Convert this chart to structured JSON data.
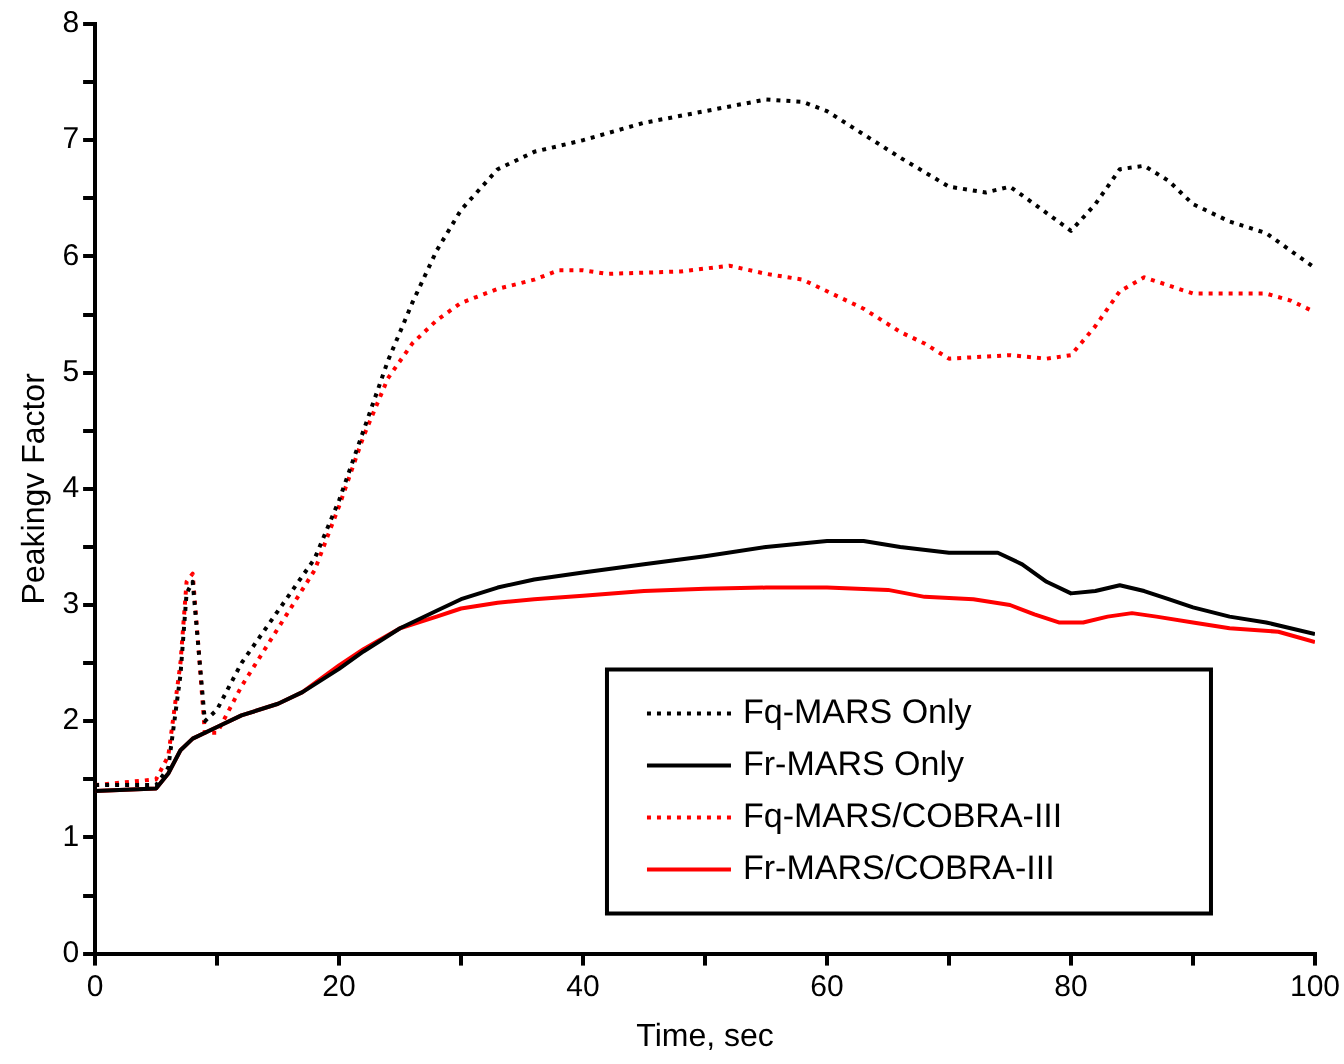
{
  "chart_data": {
    "type": "line",
    "xlabel": "Time, sec",
    "ylabel": "Peakingv Factor",
    "xlim": [
      0,
      100
    ],
    "ylim": [
      0,
      8
    ],
    "xticks": [
      0,
      {
        "value": 10,
        "label": null
      },
      20,
      {
        "value": 30,
        "label": null
      },
      40,
      {
        "value": 50,
        "label": null
      },
      60,
      {
        "value": 70,
        "label": null
      },
      80,
      {
        "value": 90,
        "label": null
      },
      100
    ],
    "yticks": [
      0,
      {
        "value": 0.5,
        "label": null
      },
      1,
      {
        "value": 1.5,
        "label": null
      },
      2,
      {
        "value": 2.5,
        "label": null
      },
      3,
      {
        "value": 3.5,
        "label": null
      },
      4,
      {
        "value": 4.5,
        "label": null
      },
      5,
      {
        "value": 5.5,
        "label": null
      },
      6,
      {
        "value": 6.5,
        "label": null
      },
      7,
      {
        "value": 7.5,
        "label": null
      },
      8
    ],
    "grid": false,
    "legend": "bottom right",
    "marker": "none",
    "series": [
      {
        "name": "Fq-MARS Only",
        "color": "#000000",
        "line_style": "dotted",
        "x": [
          0,
          5,
          6,
          7,
          7.5,
          8,
          8.5,
          9,
          10,
          12,
          15,
          18,
          20,
          22,
          24,
          26,
          28,
          30,
          33,
          36,
          40,
          45,
          50,
          55,
          58,
          60,
          63,
          66,
          70,
          73,
          75,
          77,
          80,
          82,
          84,
          86,
          88,
          90,
          93,
          96,
          100
        ],
        "values": [
          1.45,
          1.45,
          1.6,
          2.4,
          3.1,
          3.2,
          2.6,
          2,
          2.1,
          2.5,
          2.95,
          3.4,
          3.9,
          4.5,
          5.1,
          5.6,
          6.05,
          6.4,
          6.75,
          6.9,
          7,
          7.15,
          7.25,
          7.35,
          7.33,
          7.25,
          7.05,
          6.85,
          6.6,
          6.55,
          6.6,
          6.45,
          6.22,
          6.45,
          6.75,
          6.78,
          6.65,
          6.45,
          6.3,
          6.2,
          5.9
        ]
      },
      {
        "name": "Fr-MARS Only",
        "color": "#000000",
        "line_style": "solid",
        "x": [
          0,
          5,
          6,
          7,
          8,
          10,
          12,
          15,
          17,
          20,
          22,
          25,
          28,
          30,
          33,
          36,
          40,
          45,
          50,
          55,
          60,
          63,
          66,
          70,
          74,
          76,
          78,
          80,
          82,
          84,
          86,
          88,
          90,
          93,
          96,
          100
        ],
        "values": [
          1.4,
          1.42,
          1.55,
          1.75,
          1.85,
          1.95,
          2.05,
          2.15,
          2.25,
          2.45,
          2.6,
          2.8,
          2.95,
          3.05,
          3.15,
          3.22,
          3.28,
          3.35,
          3.42,
          3.5,
          3.55,
          3.55,
          3.5,
          3.45,
          3.45,
          3.35,
          3.2,
          3.1,
          3.12,
          3.17,
          3.12,
          3.05,
          2.98,
          2.9,
          2.85,
          2.75
        ]
      },
      {
        "name": "Fq-MARS/COBRA-III",
        "color": "#ff0000",
        "line_style": "dotted",
        "x": [
          0,
          5,
          6,
          7,
          7.5,
          8,
          8.5,
          9,
          10,
          12,
          15,
          18,
          20,
          22,
          24,
          26,
          28,
          30,
          33,
          36,
          38,
          40,
          42,
          48,
          52,
          55,
          58,
          60,
          63,
          66,
          68,
          70,
          75,
          78,
          80,
          82,
          84,
          86,
          88,
          90,
          96,
          98,
          100
        ],
        "values": [
          1.45,
          1.5,
          1.7,
          2.5,
          3.2,
          3.27,
          2.6,
          1.9,
          1.9,
          2.3,
          2.8,
          3.3,
          3.85,
          4.45,
          4.95,
          5.25,
          5.45,
          5.6,
          5.72,
          5.8,
          5.88,
          5.88,
          5.85,
          5.87,
          5.92,
          5.85,
          5.8,
          5.7,
          5.55,
          5.35,
          5.25,
          5.12,
          5.15,
          5.12,
          5.15,
          5.4,
          5.7,
          5.82,
          5.75,
          5.68,
          5.68,
          5.62,
          5.52
        ]
      },
      {
        "name": "Fr-MARS/COBRA-III",
        "color": "#ff0000",
        "line_style": "solid",
        "x": [
          0,
          5,
          6,
          7,
          8,
          10,
          12,
          15,
          17,
          20,
          22,
          25,
          28,
          30,
          33,
          36,
          40,
          45,
          50,
          55,
          60,
          65,
          68,
          72,
          75,
          77,
          79,
          81,
          83,
          85,
          87,
          90,
          93,
          97,
          100
        ],
        "values": [
          1.4,
          1.42,
          1.55,
          1.75,
          1.85,
          1.95,
          2.05,
          2.15,
          2.25,
          2.48,
          2.62,
          2.8,
          2.9,
          2.97,
          3.02,
          3.05,
          3.08,
          3.12,
          3.14,
          3.15,
          3.15,
          3.13,
          3.07,
          3.05,
          3,
          2.92,
          2.85,
          2.85,
          2.9,
          2.93,
          2.9,
          2.85,
          2.8,
          2.77,
          2.68
        ]
      }
    ]
  }
}
